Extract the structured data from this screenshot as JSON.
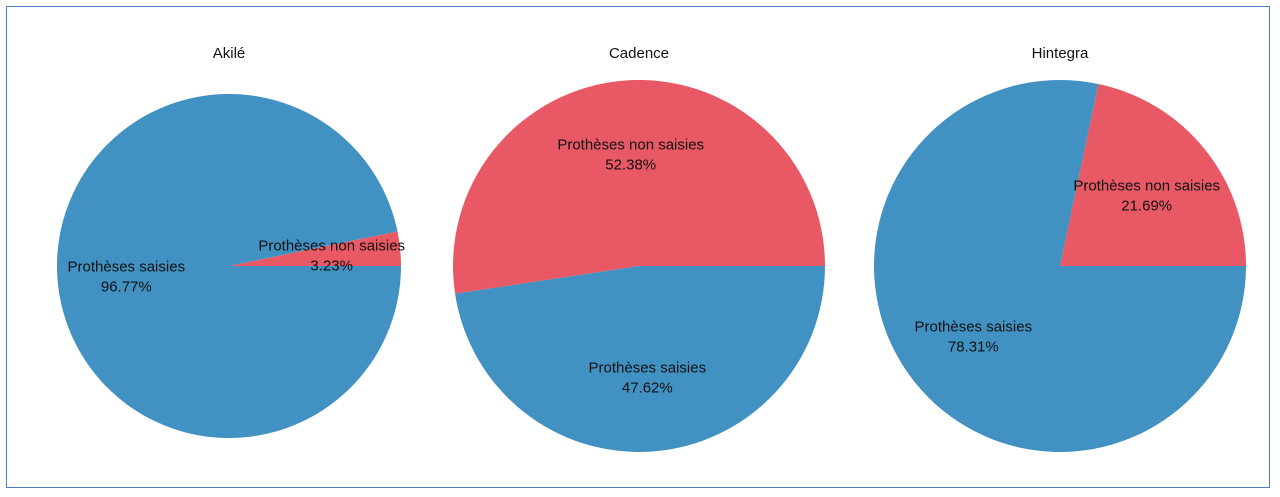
{
  "colors": {
    "saisies": "#4191c2",
    "non_saisies": "#e95965",
    "frame": "#4f7cc4"
  },
  "chart_data": [
    {
      "type": "pie",
      "title": "Akilé",
      "slices": [
        {
          "label": "Prothèses non saisies",
          "value": 3.23,
          "pct_label": "3.23%",
          "color_key": "non_saisies"
        },
        {
          "label": "Prothèses saisies",
          "value": 96.77,
          "pct_label": "96.77%",
          "color_key": "saisies"
        }
      ]
    },
    {
      "type": "pie",
      "title": "Cadence",
      "slices": [
        {
          "label": "Prothèses non saisies",
          "value": 52.38,
          "pct_label": "52.38%",
          "color_key": "non_saisies"
        },
        {
          "label": "Prothèses saisies",
          "value": 47.62,
          "pct_label": "47.62%",
          "color_key": "saisies"
        }
      ]
    },
    {
      "type": "pie",
      "title": "Hintegra",
      "slices": [
        {
          "label": "Prothèses non saisies",
          "value": 21.69,
          "pct_label": "21.69%",
          "color_key": "non_saisies"
        },
        {
          "label": "Prothèses saisies",
          "value": 78.31,
          "pct_label": "78.31%",
          "color_key": "saisies"
        }
      ]
    }
  ]
}
